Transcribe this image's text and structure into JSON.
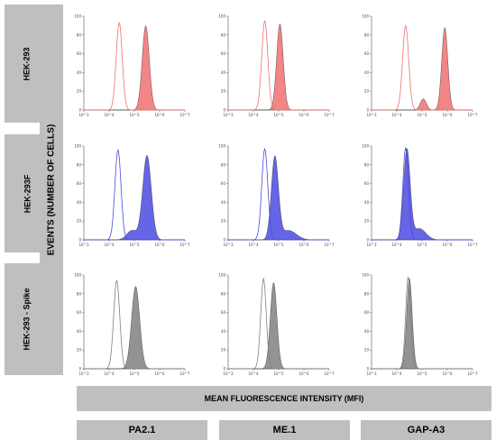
{
  "rows": [
    "HEK-293",
    "HEK-293F",
    "HEK-293 - Spike"
  ],
  "columns": [
    "PA2.1",
    "ME.1",
    "GAP-A3"
  ],
  "y_axis_title": "EVENTS (NUMBER OF CELLS)",
  "x_axis_title": "MEAN FLUORESCENCE INTENSITY (MFI)",
  "colors": {
    "red": "#f07070",
    "blue": "#4a4ae0",
    "gray": "#808080"
  },
  "chart_data": {
    "type": "histogram-grid",
    "y_ticks": [
      "0",
      "20",
      "40",
      "60",
      "80",
      "100"
    ],
    "x_ticks": [
      "10^3",
      "10^4",
      "10^5",
      "10^6",
      "10^7"
    ],
    "x_range_log10": [
      3,
      7
    ],
    "ylim": [
      0,
      100
    ],
    "panels": [
      {
        "row": "HEK-293",
        "column": "PA2.1",
        "color": "red",
        "control": [
          {
            "mu": 4.4,
            "sd": 0.12,
            "h": 93
          }
        ],
        "sample": [
          {
            "mu": 5.45,
            "sd": 0.14,
            "h": 90
          }
        ]
      },
      {
        "row": "HEK-293",
        "column": "ME.1",
        "color": "red",
        "control": [
          {
            "mu": 4.45,
            "sd": 0.12,
            "h": 95
          }
        ],
        "sample": [
          {
            "mu": 5.05,
            "sd": 0.13,
            "h": 92
          }
        ]
      },
      {
        "row": "HEK-293",
        "column": "GAP-A3",
        "color": "red",
        "control": [
          {
            "mu": 4.35,
            "sd": 0.12,
            "h": 90
          }
        ],
        "sample": [
          {
            "mu": 5.9,
            "sd": 0.12,
            "h": 88
          },
          {
            "mu": 5.05,
            "sd": 0.12,
            "h": 12
          }
        ]
      },
      {
        "row": "HEK-293F",
        "column": "PA2.1",
        "color": "blue",
        "control": [
          {
            "mu": 4.35,
            "sd": 0.12,
            "h": 96
          }
        ],
        "sample": [
          {
            "mu": 5.5,
            "sd": 0.17,
            "h": 90
          },
          {
            "mu": 4.9,
            "sd": 0.2,
            "h": 10
          }
        ]
      },
      {
        "row": "HEK-293F",
        "column": "ME.1",
        "color": "blue",
        "control": [
          {
            "mu": 4.45,
            "sd": 0.12,
            "h": 97
          }
        ],
        "sample": [
          {
            "mu": 4.85,
            "sd": 0.14,
            "h": 88
          },
          {
            "mu": 5.4,
            "sd": 0.3,
            "h": 10
          }
        ]
      },
      {
        "row": "HEK-293F",
        "column": "GAP-A3",
        "color": "blue",
        "control": [
          {
            "mu": 4.35,
            "sd": 0.11,
            "h": 98
          }
        ],
        "sample": [
          {
            "mu": 4.4,
            "sd": 0.13,
            "h": 96
          },
          {
            "mu": 4.9,
            "sd": 0.25,
            "h": 12
          }
        ]
      },
      {
        "row": "HEK-293 - Spike",
        "column": "PA2.1",
        "color": "gray",
        "control": [
          {
            "mu": 4.3,
            "sd": 0.12,
            "h": 94
          }
        ],
        "sample": [
          {
            "mu": 5.05,
            "sd": 0.16,
            "h": 88
          }
        ]
      },
      {
        "row": "HEK-293 - Spike",
        "column": "ME.1",
        "color": "gray",
        "control": [
          {
            "mu": 4.4,
            "sd": 0.11,
            "h": 96
          }
        ],
        "sample": [
          {
            "mu": 4.8,
            "sd": 0.13,
            "h": 92
          }
        ]
      },
      {
        "row": "HEK-293 - Spike",
        "column": "GAP-A3",
        "color": "gray",
        "control": [
          {
            "mu": 4.45,
            "sd": 0.1,
            "h": 98
          }
        ],
        "sample": [
          {
            "mu": 4.5,
            "sd": 0.11,
            "h": 96
          }
        ]
      }
    ]
  }
}
